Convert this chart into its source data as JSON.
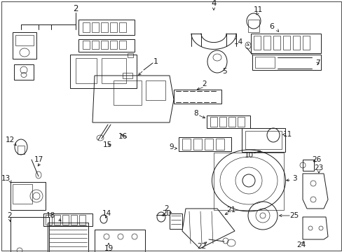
{
  "bg_color": "#ffffff",
  "line_color": "#1a1a1a",
  "fig_width": 4.89,
  "fig_height": 3.6,
  "dpi": 100,
  "lw_main": 0.7,
  "lw_thin": 0.45,
  "label_fs": 7.5
}
